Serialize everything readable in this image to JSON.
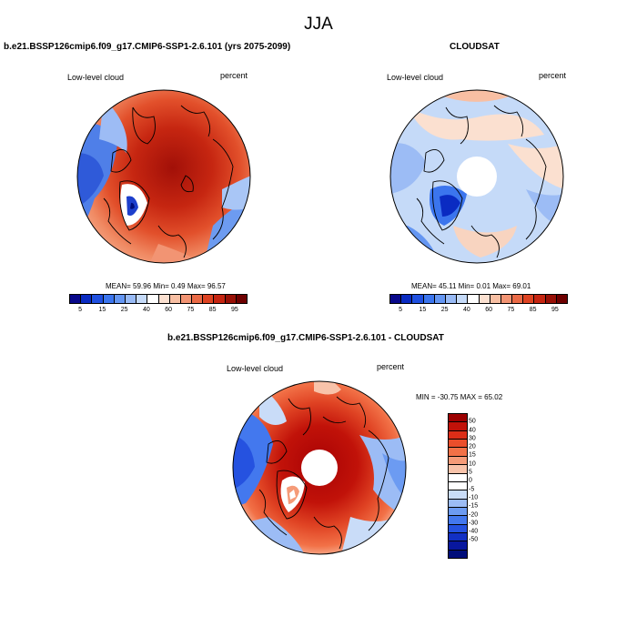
{
  "title": "JJA",
  "panels": [
    {
      "title": "b.e21.BSSP126cmip6.f09_g17.CMIP6-SSP1-2.6.101 (yrs 2075-2099)",
      "left_label": "Low-level cloud",
      "right_label": "percent",
      "stats": "MEAN=  59.96  Min=    0.49  Max=  96.57",
      "colorbar": {
        "colors": [
          "#08088a",
          "#0a2bc2",
          "#1f50e0",
          "#3b75ee",
          "#6496f2",
          "#98baf5",
          "#c5daf8",
          "#ffffff",
          "#fbe0d0",
          "#f8bfa3",
          "#f29473",
          "#ea6a46",
          "#de4322",
          "#c52511",
          "#981006",
          "#6e0000"
        ],
        "ticks": [
          "5",
          "15",
          "25",
          "40",
          "60",
          "75",
          "85",
          "95"
        ]
      }
    },
    {
      "title": "CLOUDSAT",
      "left_label": "Low-level cloud",
      "right_label": "percent",
      "stats": "MEAN=  45.11  Min=    0.01  Max=  69.01",
      "colorbar": {
        "colors": [
          "#08088a",
          "#0a2bc2",
          "#1f50e0",
          "#3b75ee",
          "#6496f2",
          "#98baf5",
          "#c5daf8",
          "#ffffff",
          "#fbe0d0",
          "#f8bfa3",
          "#f29473",
          "#ea6a46",
          "#de4322",
          "#c52511",
          "#981006",
          "#6e0000"
        ],
        "ticks": [
          "5",
          "15",
          "25",
          "40",
          "60",
          "75",
          "85",
          "95"
        ]
      }
    },
    {
      "title": "b.e21.BSSP126cmip6.f09_g17.CMIP6-SSP1-2.6.101 - CLOUDSAT",
      "left_label": "Low-level cloud",
      "right_label": "percent",
      "stats": "MIN = -30.75 MAX =  65.02",
      "colorbar": {
        "colors": [
          "#9c0000",
          "#c11209",
          "#dc2d17",
          "#ea4e2b",
          "#f27147",
          "#f59b78",
          "#f8c3aa",
          "#ffffff",
          "#ffffff",
          "#c9dcf8",
          "#9cbcf5",
          "#6c9bf2",
          "#4378ee",
          "#2552e0",
          "#1230c4",
          "#08179e",
          "#000d7a"
        ],
        "ticks": [
          "50",
          "40",
          "30",
          "20",
          "15",
          "10",
          "5",
          "0",
          "-5",
          "-10",
          "-15",
          "-20",
          "-30",
          "-40",
          "-50"
        ]
      }
    }
  ]
}
